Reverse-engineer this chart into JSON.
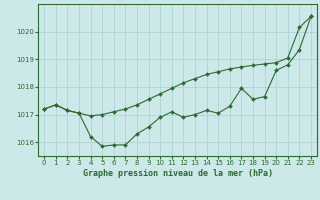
{
  "title": "Graphe pression niveau de la mer (hPa)",
  "bg_color": "#cce8e8",
  "grid_color": "#a8d0d0",
  "line_color": "#2d6a2d",
  "xlim": [
    -0.5,
    23.5
  ],
  "ylim": [
    1015.5,
    1021.0
  ],
  "yticks": [
    1016,
    1017,
    1018,
    1019,
    1020
  ],
  "xticks": [
    0,
    1,
    2,
    3,
    4,
    5,
    6,
    7,
    8,
    9,
    10,
    11,
    12,
    13,
    14,
    15,
    16,
    17,
    18,
    19,
    20,
    21,
    22,
    23
  ],
  "series1_x": [
    0,
    1,
    2,
    3,
    4,
    5,
    6,
    7,
    8,
    9,
    10,
    11,
    12,
    13,
    14,
    15,
    16,
    17,
    18,
    19,
    20,
    21,
    22,
    23
  ],
  "series1_y": [
    1017.2,
    1017.35,
    1017.15,
    1017.05,
    1016.95,
    1017.0,
    1017.1,
    1017.2,
    1017.35,
    1017.55,
    1017.75,
    1017.95,
    1018.15,
    1018.3,
    1018.45,
    1018.55,
    1018.65,
    1018.72,
    1018.78,
    1018.83,
    1018.88,
    1019.05,
    1020.15,
    1020.55
  ],
  "series2_x": [
    0,
    1,
    2,
    3,
    4,
    5,
    6,
    7,
    8,
    9,
    10,
    11,
    12,
    13,
    14,
    15,
    16,
    17,
    18,
    19,
    20,
    21,
    22,
    23
  ],
  "series2_y": [
    1017.2,
    1017.35,
    1017.15,
    1017.05,
    1016.2,
    1015.85,
    1015.9,
    1015.9,
    1016.3,
    1016.55,
    1016.9,
    1017.1,
    1016.9,
    1017.0,
    1017.15,
    1017.05,
    1017.3,
    1017.95,
    1017.55,
    1017.65,
    1018.6,
    1018.8,
    1019.35,
    1020.55
  ],
  "marker_size": 2.0,
  "linewidth": 0.8,
  "tick_fontsize": 5,
  "label_fontsize": 6
}
